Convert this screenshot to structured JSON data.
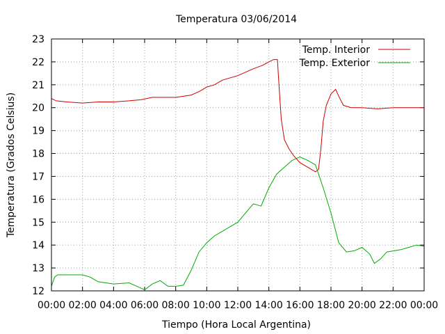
{
  "chart_data": {
    "type": "line",
    "title": "Temperatura 03/06/2014",
    "xlabel": "Tiempo (Hora Local Argentina)",
    "ylabel": "Temperatura (Grados Celsius)",
    "xlim": [
      0,
      24
    ],
    "ylim": [
      12,
      23
    ],
    "x_tick_labels": [
      "00:00",
      "02:00",
      "04:00",
      "06:00",
      "08:00",
      "10:00",
      "12:00",
      "14:00",
      "16:00",
      "18:00",
      "20:00",
      "22:00",
      "00:00"
    ],
    "y_ticks": [
      12,
      13,
      14,
      15,
      16,
      17,
      18,
      19,
      20,
      21,
      22,
      23
    ],
    "grid": true,
    "legend_position": "top-right",
    "series": [
      {
        "name": "Temp. Interior",
        "color": "#cc0000",
        "points": [
          [
            0.0,
            20.4
          ],
          [
            0.3,
            20.3
          ],
          [
            1.0,
            20.25
          ],
          [
            2.0,
            20.2
          ],
          [
            3.0,
            20.25
          ],
          [
            4.0,
            20.25
          ],
          [
            5.0,
            20.3
          ],
          [
            5.8,
            20.35
          ],
          [
            6.5,
            20.45
          ],
          [
            8.0,
            20.45
          ],
          [
            9.0,
            20.55
          ],
          [
            9.5,
            20.7
          ],
          [
            10.0,
            20.9
          ],
          [
            10.5,
            21.0
          ],
          [
            11.0,
            21.2
          ],
          [
            12.0,
            21.4
          ],
          [
            13.0,
            21.7
          ],
          [
            13.6,
            21.85
          ],
          [
            14.0,
            22.0
          ],
          [
            14.3,
            22.1
          ],
          [
            14.55,
            22.1
          ],
          [
            14.65,
            21.0
          ],
          [
            14.8,
            19.5
          ],
          [
            15.0,
            18.6
          ],
          [
            15.3,
            18.2
          ],
          [
            15.6,
            17.9
          ],
          [
            16.0,
            17.6
          ],
          [
            16.5,
            17.4
          ],
          [
            17.0,
            17.2
          ],
          [
            17.2,
            17.3
          ],
          [
            17.35,
            18.2
          ],
          [
            17.5,
            19.4
          ],
          [
            17.7,
            20.1
          ],
          [
            18.0,
            20.6
          ],
          [
            18.3,
            20.8
          ],
          [
            18.5,
            20.5
          ],
          [
            18.8,
            20.1
          ],
          [
            19.3,
            20.0
          ],
          [
            20.0,
            20.0
          ],
          [
            21.0,
            19.95
          ],
          [
            22.0,
            20.0
          ],
          [
            23.0,
            20.0
          ],
          [
            24.0,
            20.0
          ]
        ]
      },
      {
        "name": "Temp. Exterior",
        "color": "#00aa00",
        "points": [
          [
            0.0,
            12.2
          ],
          [
            0.2,
            12.6
          ],
          [
            0.4,
            12.7
          ],
          [
            1.5,
            12.7
          ],
          [
            2.0,
            12.7
          ],
          [
            2.5,
            12.6
          ],
          [
            3.0,
            12.4
          ],
          [
            3.5,
            12.35
          ],
          [
            4.0,
            12.3
          ],
          [
            5.0,
            12.35
          ],
          [
            5.5,
            12.2
          ],
          [
            6.0,
            12.05
          ],
          [
            6.5,
            12.3
          ],
          [
            7.0,
            12.45
          ],
          [
            7.5,
            12.2
          ],
          [
            8.0,
            12.2
          ],
          [
            8.5,
            12.25
          ],
          [
            9.0,
            12.9
          ],
          [
            9.5,
            13.7
          ],
          [
            10.0,
            14.1
          ],
          [
            10.5,
            14.4
          ],
          [
            11.0,
            14.6
          ],
          [
            11.5,
            14.8
          ],
          [
            12.0,
            15.0
          ],
          [
            12.5,
            15.4
          ],
          [
            13.0,
            15.8
          ],
          [
            13.5,
            15.7
          ],
          [
            14.0,
            16.5
          ],
          [
            14.5,
            17.1
          ],
          [
            15.0,
            17.4
          ],
          [
            15.5,
            17.7
          ],
          [
            16.0,
            17.85
          ],
          [
            16.5,
            17.7
          ],
          [
            17.0,
            17.5
          ],
          [
            17.5,
            16.5
          ],
          [
            18.0,
            15.4
          ],
          [
            18.5,
            14.1
          ],
          [
            19.0,
            13.7
          ],
          [
            19.5,
            13.75
          ],
          [
            20.0,
            13.9
          ],
          [
            20.5,
            13.6
          ],
          [
            20.8,
            13.2
          ],
          [
            21.2,
            13.4
          ],
          [
            21.6,
            13.7
          ],
          [
            22.5,
            13.8
          ],
          [
            23.0,
            13.9
          ],
          [
            23.5,
            14.0
          ],
          [
            24.0,
            13.95
          ]
        ]
      }
    ]
  }
}
